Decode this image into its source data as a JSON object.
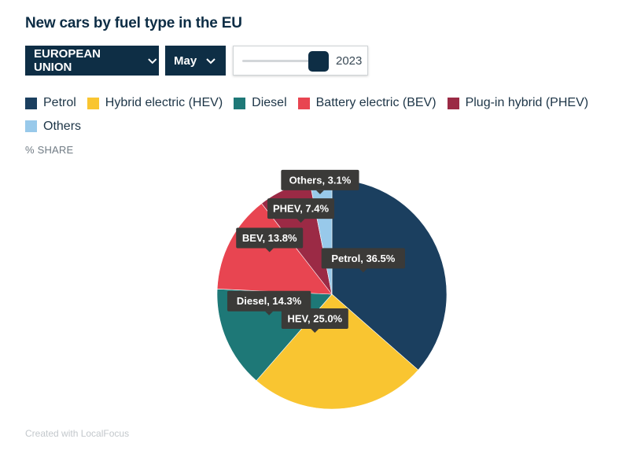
{
  "title": "New cars by fuel type in the EU",
  "controls": {
    "region_label": "EUROPEAN UNION",
    "month_label": "May",
    "year_label": "2023",
    "year_slider_level": 0.9
  },
  "icons": {
    "dropdown": "chevron-down-icon"
  },
  "legend": [
    {
      "label": "Petrol",
      "color": "#1b3f5f"
    },
    {
      "label": "Hybrid electric (HEV)",
      "color": "#f9c531"
    },
    {
      "label": "Diesel",
      "color": "#1e7877"
    },
    {
      "label": "Battery electric (BEV)",
      "color": "#e84551"
    },
    {
      "label": "Plug-in hybrid (PHEV)",
      "color": "#9b2a45"
    },
    {
      "label": "Others",
      "color": "#98c9ea"
    }
  ],
  "unit_label": "% SHARE",
  "credit": "Created with LocalFocus",
  "chart_data": {
    "type": "pie",
    "unit": "% SHARE",
    "slices": [
      {
        "name": "Petrol",
        "value": 36.5,
        "color": "#1b3f5f",
        "label": "Petrol, 36.5%"
      },
      {
        "name": "HEV",
        "value": 25.0,
        "color": "#f9c531",
        "label": "HEV, 25.0%"
      },
      {
        "name": "Diesel",
        "value": 14.3,
        "color": "#1e7877",
        "label": "Diesel, 14.3%"
      },
      {
        "name": "BEV",
        "value": 13.8,
        "color": "#e84551",
        "label": "BEV, 13.8%"
      },
      {
        "name": "PHEV",
        "value": 7.4,
        "color": "#9b2a45",
        "label": "PHEV, 7.4%"
      },
      {
        "name": "Others",
        "value": 3.1,
        "color": "#98c9ea",
        "label": "Others, 3.1%"
      }
    ]
  }
}
